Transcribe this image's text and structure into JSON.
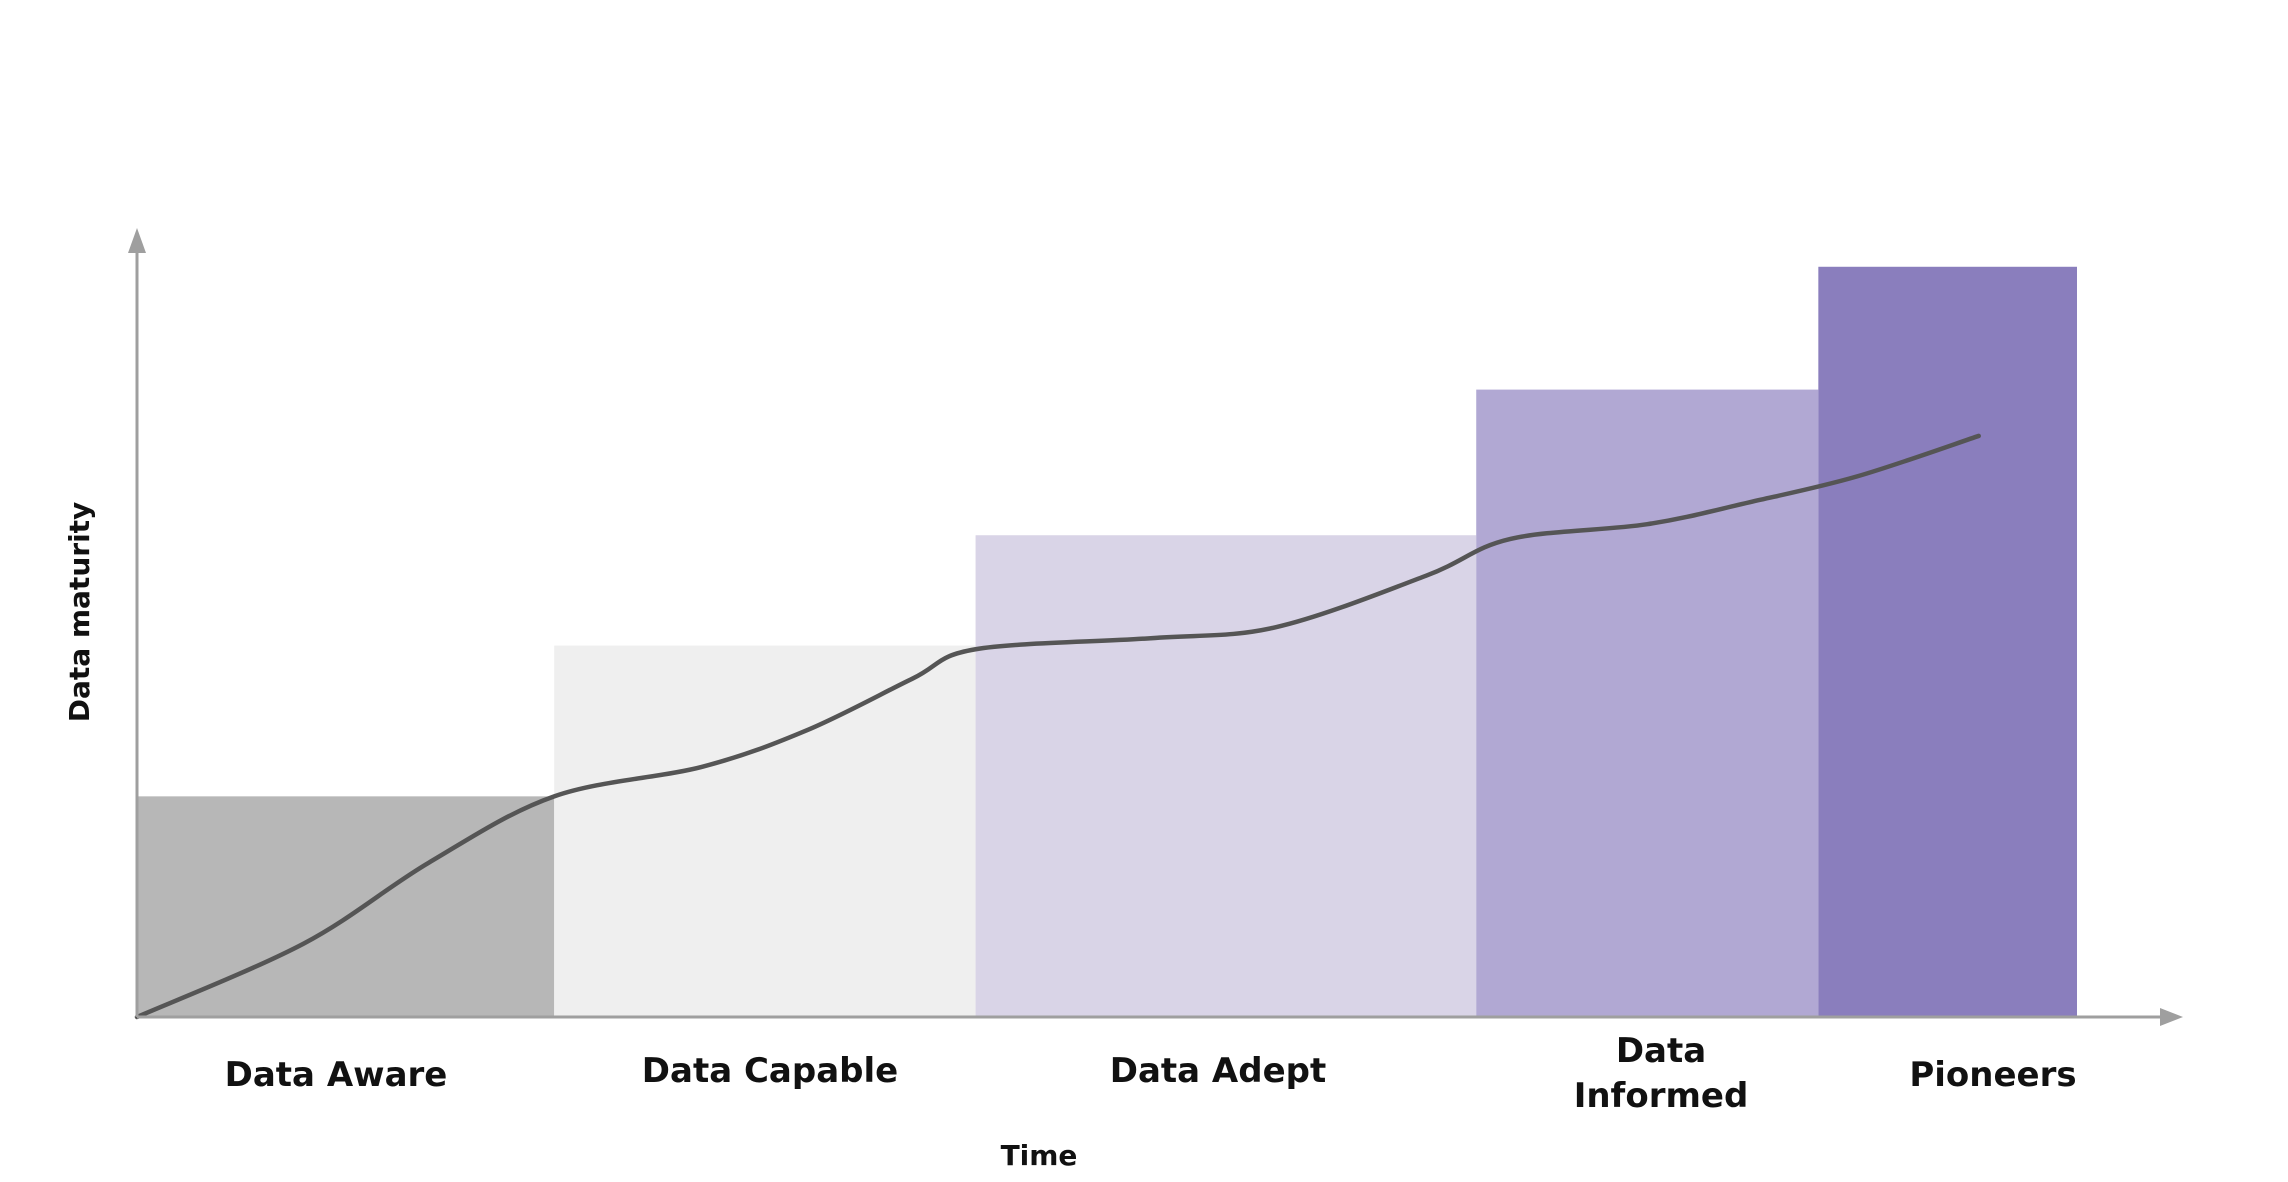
{
  "chart_data": {
    "type": "bar",
    "title": "",
    "xlabel": "Time",
    "ylabel": "Data maturity",
    "categories": [
      {
        "label": "Data Aware",
        "lines": [
          "Data Aware"
        ],
        "value": 30,
        "color": "#b7b7b7"
      },
      {
        "label": "Data Capable",
        "lines": [
          "Data Capable"
        ],
        "value": 50.5,
        "color": "#efefef"
      },
      {
        "label": "Data Adept",
        "lines": [
          "Data Adept"
        ],
        "value": 65.5,
        "color": "#d9d4e7"
      },
      {
        "label": "Data Informed",
        "lines": [
          "Data",
          "Informed"
        ],
        "value": 85.3,
        "color": "#b1a8d3"
      },
      {
        "label": "Pioneers",
        "lines": [
          "Pioneers"
        ],
        "value": 102,
        "color": "#8a7ebd"
      }
    ],
    "widths": [
      1,
      1.01,
      1.2,
      0.82,
      0.62
    ],
    "ylim": [
      0,
      107
    ],
    "grid": false,
    "legend": "none",
    "trend_line": {
      "color": "#555555",
      "points": [
        [
          0,
          0
        ],
        [
          0.4,
          10
        ],
        [
          0.7,
          21
        ],
        [
          1,
          30
        ],
        [
          1.35,
          34
        ],
        [
          1.6,
          39
        ],
        [
          1.85,
          46
        ],
        [
          2,
          50
        ],
        [
          2.35,
          51.5
        ],
        [
          2.6,
          53
        ],
        [
          2.9,
          60
        ],
        [
          3.1,
          65
        ],
        [
          3.5,
          67
        ],
        [
          3.8,
          70
        ],
        [
          4.15,
          73.5
        ],
        [
          4.62,
          79
        ]
      ]
    },
    "axis_color": "#9f9f9f"
  }
}
